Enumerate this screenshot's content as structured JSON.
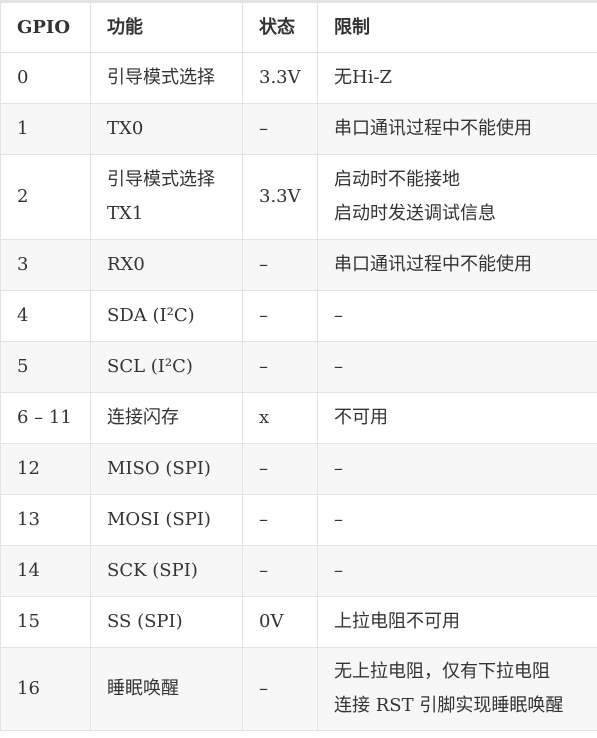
{
  "table": {
    "headers": [
      "GPIO",
      "功能",
      "状态",
      "限制"
    ],
    "rows": [
      {
        "gpio": "0",
        "function": [
          "引导模式选择"
        ],
        "status": "3.3V",
        "limits": [
          "无Hi-Z"
        ]
      },
      {
        "gpio": "1",
        "function": [
          "TX0"
        ],
        "status": "–",
        "limits": [
          "串口通讯过程中不能使用"
        ]
      },
      {
        "gpio": "2",
        "function": [
          "引导模式选择",
          "TX1"
        ],
        "status": "3.3V",
        "limits": [
          "启动时不能接地",
          "启动时发送调试信息"
        ]
      },
      {
        "gpio": "3",
        "function": [
          "RX0"
        ],
        "status": "–",
        "limits": [
          "串口通讯过程中不能使用"
        ]
      },
      {
        "gpio": "4",
        "function": [
          "SDA (I²C)"
        ],
        "status": "–",
        "limits": [
          "–"
        ]
      },
      {
        "gpio": "5",
        "function": [
          "SCL (I²C)"
        ],
        "status": "–",
        "limits": [
          "–"
        ]
      },
      {
        "gpio": "6 – 11",
        "function": [
          "连接闪存"
        ],
        "status": "x",
        "limits": [
          "不可用"
        ]
      },
      {
        "gpio": "12",
        "function": [
          "MISO (SPI)"
        ],
        "status": "–",
        "limits": [
          "–"
        ]
      },
      {
        "gpio": "13",
        "function": [
          "MOSI (SPI)"
        ],
        "status": "–",
        "limits": [
          "–"
        ]
      },
      {
        "gpio": "14",
        "function": [
          "SCK (SPI)"
        ],
        "status": "–",
        "limits": [
          "–"
        ]
      },
      {
        "gpio": "15",
        "function": [
          "SS (SPI)"
        ],
        "status": "0V",
        "limits": [
          "上拉电阻不可用"
        ]
      },
      {
        "gpio": "16",
        "function": [
          "睡眠唤醒"
        ],
        "status": "–",
        "limits": [
          "无上拉电阻，仅有下拉电阻",
          "连接 RST 引脚实现睡眠唤醒"
        ]
      }
    ]
  }
}
